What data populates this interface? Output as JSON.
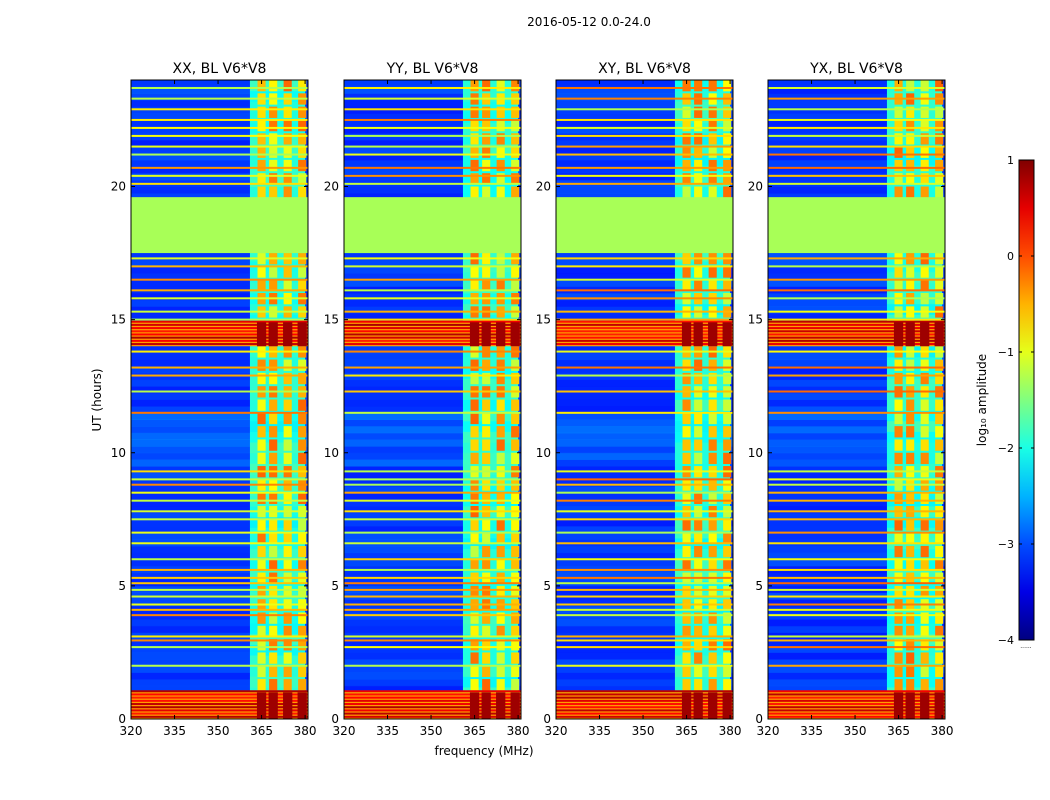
{
  "chart_data": {
    "type": "heatmap",
    "title": "2016-05-12 0.0-24.0",
    "ylabel": "UT (hours)",
    "xlabel": "frequency (MHz)",
    "xlim": [
      320,
      381
    ],
    "ylim": [
      0,
      24
    ],
    "xticks": [
      320,
      335,
      350,
      365,
      380
    ],
    "yticks": [
      0,
      5,
      10,
      15,
      20
    ],
    "colormap": "jet",
    "colorbar": {
      "label": "log₁₀ amplitude",
      "range": [
        -4,
        1
      ],
      "ticks": [
        "1",
        "0",
        "−1",
        "−2",
        "−3",
        "−4"
      ],
      "tick_values": [
        1,
        0,
        -1,
        -2,
        -3,
        -4
      ],
      "footnote": "......"
    },
    "panels": [
      {
        "title": "XX, BL V6*V8"
      },
      {
        "title": "YY, BL V6*V8"
      },
      {
        "title": "XY, BL V6*V8"
      },
      {
        "title": "YX, BL V6*V8"
      }
    ],
    "features": {
      "flagged_time_range_hours": [
        17.5,
        19.6
      ],
      "flagged_level": -1.3,
      "rfi_band_mhz": [
        361,
        380
      ],
      "rfi_channels_mhz": [
        365,
        369,
        374,
        379
      ],
      "strong_time_bands_hours": [
        [
          0.0,
          1.0
        ],
        [
          14.0,
          14.9
        ]
      ],
      "line_times_hours": [
        0.8,
        1.0,
        2.0,
        2.7,
        2.95,
        3.1,
        3.9,
        4.1,
        4.3,
        4.6,
        4.85,
        5.1,
        5.3,
        5.6,
        6.0,
        6.6,
        7.0,
        7.5,
        7.8,
        8.2,
        8.5,
        8.8,
        9.0,
        9.3,
        11.5,
        12.3,
        12.9,
        13.2,
        13.8,
        15.0,
        15.3,
        15.8,
        16.1,
        16.5,
        17.0,
        17.3,
        20.1,
        20.4,
        20.7,
        21.2,
        21.5,
        21.9,
        22.2,
        22.5,
        22.9,
        23.3,
        23.7
      ]
    }
  }
}
